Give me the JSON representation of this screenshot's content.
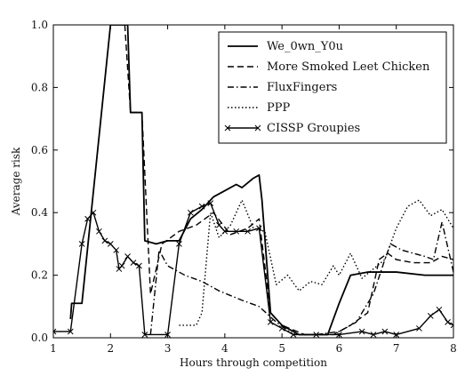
{
  "chart_data": {
    "type": "line",
    "title": "",
    "xlabel": "Hours through competition",
    "ylabel": "Average risk",
    "xlim": [
      1,
      8
    ],
    "ylim": [
      0.0,
      1.0
    ],
    "xticks": [
      "1",
      "2",
      "3",
      "4",
      "5",
      "6",
      "7",
      "8"
    ],
    "yticks": [
      "0.0",
      "0.2",
      "0.4",
      "0.6",
      "0.8",
      "1.0"
    ],
    "grid": false,
    "legend_position": "top-right",
    "series": [
      {
        "name": "We_0wn_Y0u",
        "style": "solid",
        "color": "#000000",
        "points": [
          [
            1.3,
            0.06
          ],
          [
            1.32,
            0.11
          ],
          [
            1.5,
            0.11
          ],
          [
            2.0,
            1.0
          ],
          [
            2.3,
            1.0
          ],
          [
            2.35,
            0.72
          ],
          [
            2.55,
            0.72
          ],
          [
            2.6,
            0.31
          ],
          [
            2.8,
            0.3
          ],
          [
            3.0,
            0.31
          ],
          [
            3.2,
            0.31
          ],
          [
            3.4,
            0.38
          ],
          [
            3.6,
            0.41
          ],
          [
            3.8,
            0.45
          ],
          [
            4.0,
            0.47
          ],
          [
            4.2,
            0.49
          ],
          [
            4.3,
            0.48
          ],
          [
            4.5,
            0.51
          ],
          [
            4.6,
            0.52
          ],
          [
            4.65,
            0.44
          ],
          [
            4.8,
            0.08
          ],
          [
            5.0,
            0.04
          ],
          [
            5.3,
            0.01
          ],
          [
            5.8,
            0.01
          ],
          [
            6.0,
            0.11
          ],
          [
            6.2,
            0.2
          ],
          [
            6.5,
            0.21
          ],
          [
            7.0,
            0.21
          ],
          [
            7.5,
            0.2
          ],
          [
            8.0,
            0.2
          ]
        ]
      },
      {
        "name": "More Smoked Leet Chicken",
        "style": "dashed",
        "color": "#000000",
        "points": [
          [
            2.25,
            1.0
          ],
          [
            2.35,
            0.72
          ],
          [
            2.55,
            0.72
          ],
          [
            2.7,
            0.14
          ],
          [
            2.9,
            0.3
          ],
          [
            3.2,
            0.34
          ],
          [
            3.5,
            0.36
          ],
          [
            3.8,
            0.4
          ],
          [
            4.1,
            0.33
          ],
          [
            4.4,
            0.35
          ],
          [
            4.6,
            0.38
          ],
          [
            4.8,
            0.08
          ],
          [
            5.0,
            0.04
          ],
          [
            5.4,
            0.01
          ],
          [
            5.9,
            0.01
          ],
          [
            6.2,
            0.04
          ],
          [
            6.5,
            0.08
          ],
          [
            6.7,
            0.25
          ],
          [
            6.85,
            0.27
          ],
          [
            7.0,
            0.25
          ],
          [
            7.3,
            0.24
          ],
          [
            7.6,
            0.24
          ],
          [
            7.8,
            0.26
          ],
          [
            8.0,
            0.25
          ]
        ]
      },
      {
        "name": "FluxFingers",
        "style": "dashdot",
        "color": "#000000",
        "points": [
          [
            2.7,
            0.01
          ],
          [
            2.85,
            0.28
          ],
          [
            3.0,
            0.23
          ],
          [
            3.3,
            0.2
          ],
          [
            3.6,
            0.18
          ],
          [
            3.9,
            0.15
          ],
          [
            4.3,
            0.12
          ],
          [
            4.6,
            0.1
          ],
          [
            4.9,
            0.05
          ],
          [
            5.2,
            0.01
          ],
          [
            5.6,
            0.01
          ],
          [
            6.0,
            0.02
          ],
          [
            6.3,
            0.05
          ],
          [
            6.6,
            0.14
          ],
          [
            6.8,
            0.25
          ],
          [
            6.9,
            0.3
          ],
          [
            7.1,
            0.28
          ],
          [
            7.3,
            0.27
          ],
          [
            7.5,
            0.26
          ],
          [
            7.65,
            0.25
          ],
          [
            7.8,
            0.37
          ],
          [
            8.0,
            0.21
          ]
        ]
      },
      {
        "name": "PPP",
        "style": "dotted",
        "color": "#000000",
        "points": [
          [
            3.2,
            0.04
          ],
          [
            3.3,
            0.04
          ],
          [
            3.5,
            0.04
          ],
          [
            3.6,
            0.08
          ],
          [
            3.75,
            0.4
          ],
          [
            3.9,
            0.32
          ],
          [
            4.1,
            0.36
          ],
          [
            4.3,
            0.44
          ],
          [
            4.5,
            0.35
          ],
          [
            4.7,
            0.34
          ],
          [
            4.9,
            0.17
          ],
          [
            5.1,
            0.2
          ],
          [
            5.3,
            0.15
          ],
          [
            5.5,
            0.18
          ],
          [
            5.7,
            0.17
          ],
          [
            5.9,
            0.23
          ],
          [
            6.0,
            0.2
          ],
          [
            6.2,
            0.27
          ],
          [
            6.4,
            0.19
          ],
          [
            6.6,
            0.22
          ],
          [
            6.8,
            0.25
          ],
          [
            7.0,
            0.35
          ],
          [
            7.2,
            0.42
          ],
          [
            7.4,
            0.44
          ],
          [
            7.6,
            0.39
          ],
          [
            7.8,
            0.41
          ],
          [
            8.0,
            0.35
          ]
        ]
      },
      {
        "name": "CISSP Groupies",
        "style": "solid-x",
        "color": "#000000",
        "points": [
          [
            1.0,
            0.02
          ],
          [
            1.3,
            0.02
          ],
          [
            1.5,
            0.3
          ],
          [
            1.6,
            0.38
          ],
          [
            1.7,
            0.4
          ],
          [
            1.8,
            0.34
          ],
          [
            1.9,
            0.31
          ],
          [
            2.0,
            0.3
          ],
          [
            2.1,
            0.28
          ],
          [
            2.15,
            0.22
          ],
          [
            2.2,
            0.23
          ],
          [
            2.3,
            0.26
          ],
          [
            2.4,
            0.24
          ],
          [
            2.5,
            0.23
          ],
          [
            2.6,
            0.01
          ],
          [
            3.0,
            0.01
          ],
          [
            3.2,
            0.3
          ],
          [
            3.4,
            0.4
          ],
          [
            3.6,
            0.42
          ],
          [
            3.75,
            0.43
          ],
          [
            3.9,
            0.36
          ],
          [
            4.0,
            0.34
          ],
          [
            4.2,
            0.34
          ],
          [
            4.4,
            0.34
          ],
          [
            4.6,
            0.35
          ],
          [
            4.8,
            0.05
          ],
          [
            5.0,
            0.03
          ],
          [
            5.2,
            0.01
          ],
          [
            5.6,
            0.01
          ],
          [
            6.0,
            0.01
          ],
          [
            6.4,
            0.02
          ],
          [
            6.6,
            0.01
          ],
          [
            6.8,
            0.02
          ],
          [
            7.0,
            0.01
          ],
          [
            7.4,
            0.03
          ],
          [
            7.6,
            0.07
          ],
          [
            7.75,
            0.09
          ],
          [
            7.9,
            0.05
          ],
          [
            8.0,
            0.04
          ]
        ]
      }
    ]
  }
}
